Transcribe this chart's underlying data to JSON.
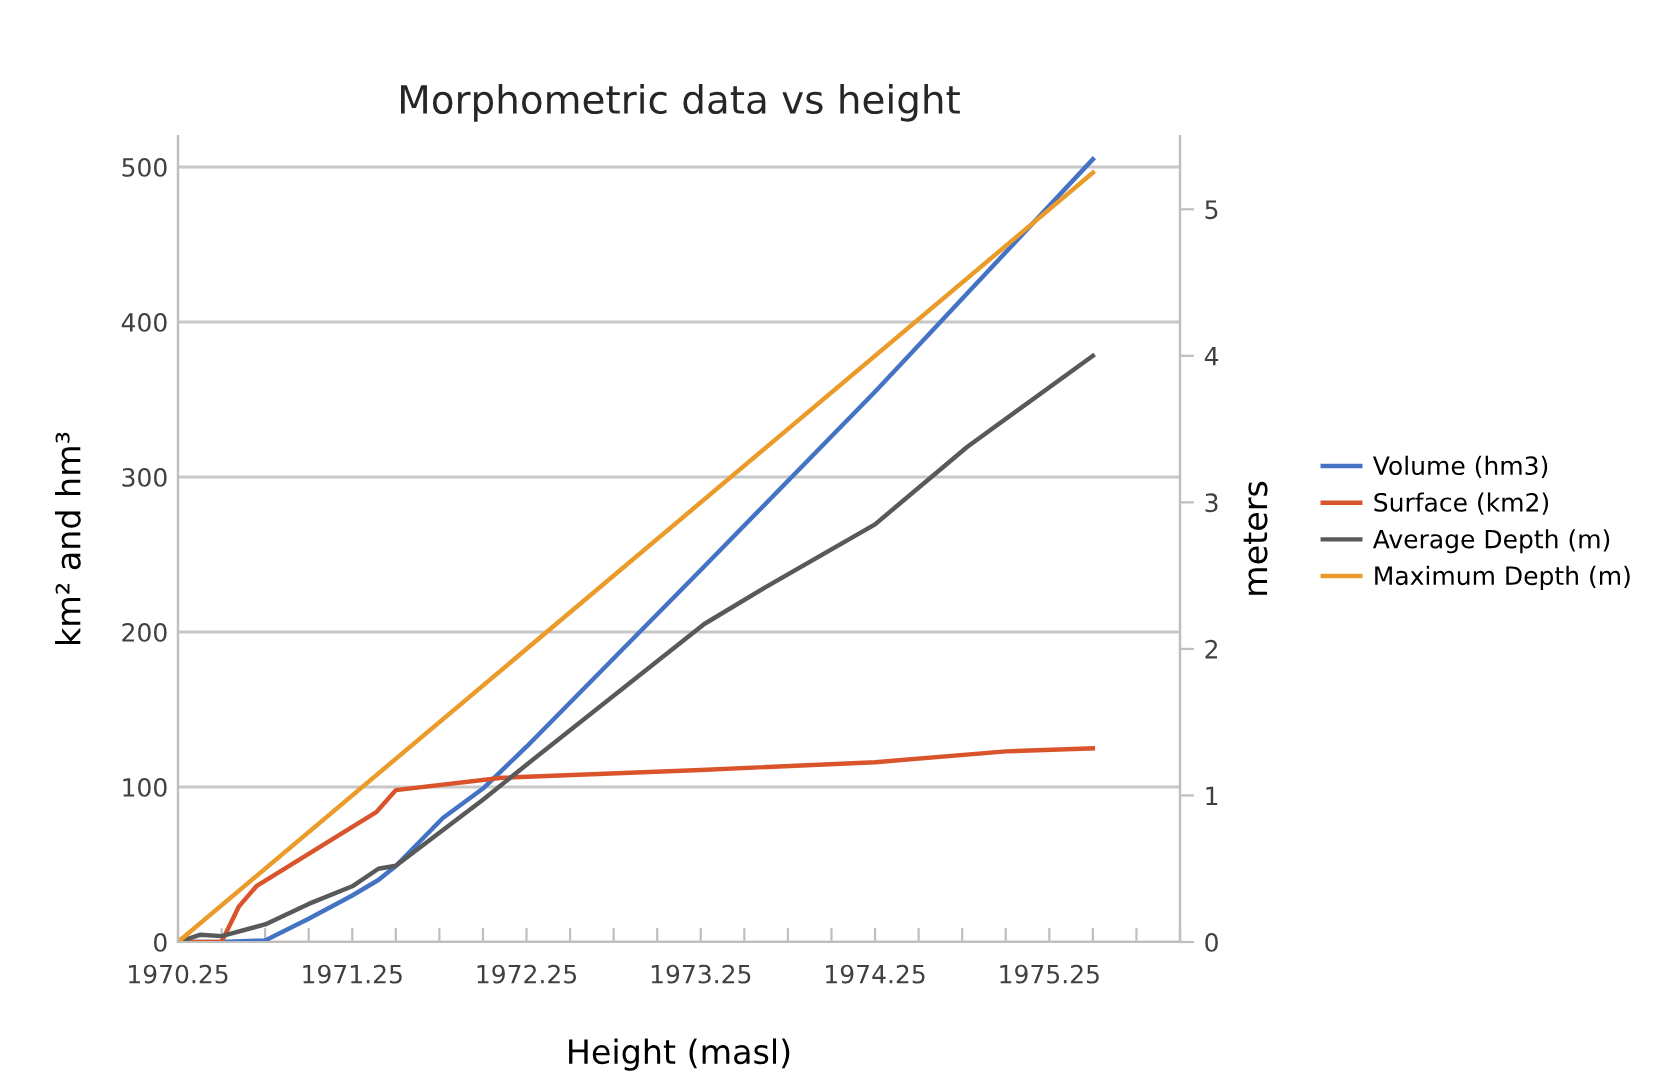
{
  "chart_data": {
    "type": "line",
    "title": "Morphometric data vs height",
    "xlabel": "Height (masl)",
    "ylabel": "km² and hm³",
    "y2label": "meters",
    "xlim": [
      1970.25,
      1976
    ],
    "xticks": [
      1970.25,
      {
        "value": 1970.5,
        "label": null
      },
      {
        "value": 1970.75,
        "label": null
      },
      {
        "value": 1971,
        "label": null
      },
      1971.25,
      {
        "value": 1971.5,
        "label": null
      },
      {
        "value": 1971.75,
        "label": null
      },
      {
        "value": 1972,
        "label": null
      },
      1972.25,
      {
        "value": 1972.5,
        "label": null
      },
      {
        "value": 1972.75,
        "label": null
      },
      {
        "value": 1973,
        "label": null
      },
      1973.25,
      {
        "value": 1973.5,
        "label": null
      },
      {
        "value": 1973.75,
        "label": null
      },
      {
        "value": 1974,
        "label": null
      },
      1974.25,
      {
        "value": 1974.5,
        "label": null
      },
      {
        "value": 1974.75,
        "label": null
      },
      {
        "value": 1975,
        "label": null
      },
      1975.25,
      {
        "value": 1975.5,
        "label": null
      },
      {
        "value": 1975.75,
        "label": null
      },
      {
        "value": 1976,
        "label": null
      }
    ],
    "ylim": [
      0,
      520
    ],
    "yticks": [
      0,
      100,
      200,
      300,
      400,
      500
    ],
    "y2lim": [
      0,
      5.5
    ],
    "y2ticks": [
      0,
      1,
      2,
      3,
      4,
      5
    ],
    "grid": "y",
    "legend": "right",
    "marker": "none",
    "line_style": "solid",
    "series": [
      {
        "name": "Volume (hm3)",
        "color": "#4472c4",
        "x": [
          1970.25,
          1970.5,
          1970.75,
          1971.0,
          1971.25,
          1971.4,
          1971.5,
          1971.77,
          1972.0,
          1972.25,
          1973.25,
          1974.25,
          1975.0,
          1975.5
        ],
        "values": [
          0,
          0,
          1,
          15,
          30,
          40,
          49,
          80,
          99,
          126,
          240,
          355,
          445,
          505
        ]
      },
      {
        "name": "Surface (km2)",
        "color": "#d9532b",
        "x": [
          1970.25,
          1970.5,
          1970.6,
          1970.7,
          1971.39,
          1971.5,
          1972.11,
          1973.25,
          1974.25,
          1975.0,
          1975.5
        ],
        "values": [
          0,
          0,
          23,
          36,
          84,
          98,
          106,
          111,
          116,
          123,
          125
        ]
      },
      {
        "name": "Average Depth (m)",
        "color": "#595959",
        "axis": "y2",
        "x": [
          1970.25,
          1970.38,
          1970.5,
          1970.75,
          1971.0,
          1971.25,
          1971.4,
          1971.5,
          1972.0,
          1972.25,
          1973.27,
          1973.62,
          1974.25,
          1974.78,
          1975.5
        ],
        "values": [
          0,
          0.05,
          0.04,
          0.12,
          0.26,
          0.38,
          0.5,
          0.52,
          0.97,
          1.21,
          2.17,
          2.42,
          2.85,
          3.38,
          4.0
        ]
      },
      {
        "name": "Maximum Depth (m)",
        "color": "#eb9b2a",
        "axis": "y2",
        "x": [
          1970.25,
          1975.5
        ],
        "values": [
          0,
          5.25
        ]
      }
    ]
  }
}
